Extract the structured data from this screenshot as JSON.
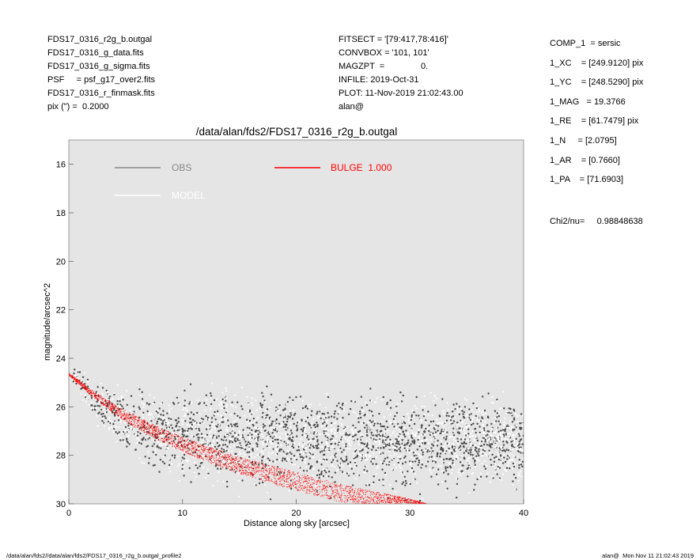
{
  "header": {
    "left": [
      "FDS17_0316_r2g_b.outgal",
      "FDS17_0316_g_data.fits",
      "FDS17_0316_g_sigma.fits",
      "PSF     = psf_g17_over2.fits",
      "FDS17_0316_r_finmask.fits",
      "pix (\") =  0.2000"
    ],
    "middle": [
      "FITSECT = '[79:417,78:416]'",
      "CONVBOX = '101, 101'",
      "MAGZPT  =               0.",
      "INFILE: 2019-Oct-31",
      "PLOT: 11-Nov-2019 21:02:43.00",
      "alan@"
    ]
  },
  "params": [
    "COMP_1  = sersic",
    "1_XC    = [249.9120] pix",
    "1_YC    = [248.5290] pix",
    "1_MAG   = 19.3766",
    "1_RE    = [61.7479] pix",
    "1_N     = [2.0795]",
    "1_AR    = [0.7660]",
    "1_PA    = [71.6903]"
  ],
  "chi2": "Chi2/nu=     0.98848638",
  "footer": {
    "left": "/data/alan/fds2//data/alan/fds2/FDS17_0316_r2g_b.outgal_profile2",
    "right": "alan@  Mon Nov 11 21:02:43 2019"
  },
  "colors": {
    "plot_background": "#e5e5e5",
    "obs": "#4a4a4a",
    "model": "#ffffff",
    "bulge": "#ff0000"
  },
  "chart_data": {
    "type": "scatter",
    "title": "/data/alan/fds2/FDS17_0316_r2g_b.outgal",
    "xlabel": "Distance along sky [arcsec]",
    "ylabel": "magnitude/arcsec^2",
    "xlim": [
      0,
      40
    ],
    "ylim": [
      30,
      15
    ],
    "y_inverted": true,
    "xticks": [
      0,
      10,
      20,
      30,
      40
    ],
    "yticks": [
      16,
      18,
      20,
      22,
      24,
      26,
      28,
      30
    ],
    "grid": false,
    "legend": [
      {
        "name": "OBS",
        "color": "#888888",
        "position": "top-left"
      },
      {
        "name": "MODEL",
        "color": "#ffffff",
        "position": "top-left"
      },
      {
        "name": "BULGE  1.000",
        "color": "#ff0000",
        "position": "top-center"
      }
    ],
    "series": [
      {
        "name": "OBS",
        "style": "dark grey points",
        "x": [
          0.5,
          1,
          1.5,
          2,
          3,
          4,
          5,
          6,
          7,
          8,
          10,
          12,
          14,
          16,
          18,
          20,
          22,
          24,
          26,
          28,
          30,
          32,
          34,
          36,
          38,
          40
        ],
        "y": [
          24.8,
          25.0,
          25.3,
          25.6,
          26.0,
          26.3,
          26.6,
          26.8,
          26.9,
          27.0,
          27.1,
          27.2,
          27.25,
          27.3,
          27.35,
          27.4,
          27.4,
          27.45,
          27.45,
          27.5,
          27.5,
          27.5,
          27.5,
          27.5,
          27.5,
          27.5
        ],
        "scatter_spread_mag": [
          0.3,
          0.4,
          0.5,
          0.6,
          0.8,
          1.0,
          1.1,
          1.2,
          1.3,
          1.4,
          1.4,
          1.5,
          1.5,
          1.5,
          1.5,
          1.5,
          1.5,
          1.5,
          1.5,
          1.5,
          1.5,
          1.5,
          1.5,
          1.5,
          1.5,
          1.5
        ]
      },
      {
        "name": "MODEL",
        "style": "white points",
        "x": [
          0.5,
          1,
          1.5,
          2,
          3,
          4,
          5,
          6,
          7,
          8,
          10,
          12,
          14,
          16,
          18,
          20,
          22,
          24,
          26,
          28,
          30,
          32,
          34,
          36,
          38,
          40
        ],
        "y": [
          24.8,
          25.0,
          25.3,
          25.6,
          26.0,
          26.3,
          26.6,
          26.8,
          26.9,
          27.0,
          27.1,
          27.2,
          27.25,
          27.3,
          27.35,
          27.4,
          27.4,
          27.45,
          27.45,
          27.5,
          27.5,
          27.5,
          27.5,
          27.5,
          27.5,
          27.5
        ],
        "scatter_spread_mag": [
          0.3,
          0.4,
          0.5,
          0.6,
          0.8,
          1.0,
          1.1,
          1.2,
          1.3,
          1.4,
          1.4,
          1.5,
          1.5,
          1.5,
          1.5,
          1.5,
          1.5,
          1.5,
          1.5,
          1.5,
          1.5,
          1.5,
          1.5,
          1.5,
          1.5,
          1.5
        ]
      },
      {
        "name": "BULGE  1.000",
        "style": "red band",
        "x": [
          0,
          2,
          4,
          6,
          8,
          10,
          12,
          14,
          16,
          18,
          20,
          22,
          24,
          26,
          28,
          30,
          31.5
        ],
        "y_bright": [
          24.6,
          25.3,
          25.9,
          26.4,
          26.85,
          27.25,
          27.6,
          27.9,
          28.2,
          28.45,
          28.7,
          28.95,
          29.2,
          29.4,
          29.6,
          29.8,
          30.0
        ],
        "y_faint": [
          24.7,
          25.55,
          26.3,
          26.9,
          27.4,
          27.85,
          28.25,
          28.6,
          28.9,
          29.2,
          29.45,
          29.7,
          29.95,
          30.0,
          30.0,
          30.0,
          30.0
        ]
      }
    ]
  }
}
